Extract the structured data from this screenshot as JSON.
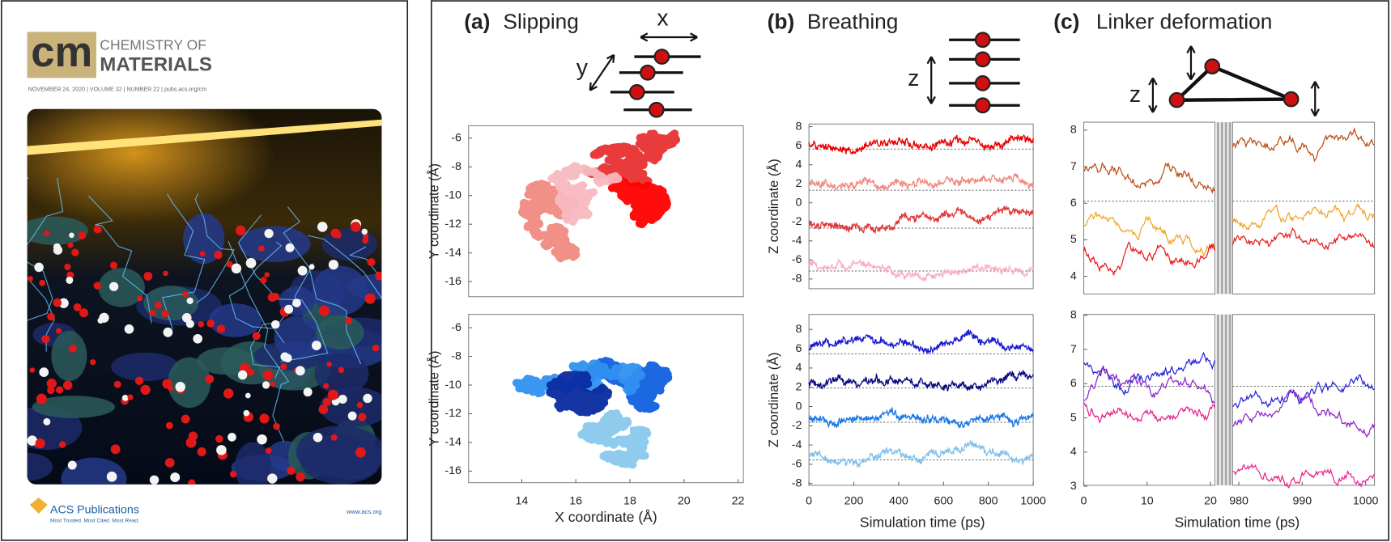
{
  "cover": {
    "logo": "cm",
    "journal_line1": "CHEMISTRY OF",
    "journal_line2": "MATERIALS",
    "issue": "NOVEMBER 24, 2020 | VOLUME 32 | NUMBER 22 | pubs.acs.org/cm",
    "publisher": "ACS Publications",
    "tagline": "Most Trusted. Most Cited. Most Read.",
    "url": "www.acs.org"
  },
  "panels": [
    {
      "label": "(a)",
      "title": "Slipping",
      "schematic_labels": [
        "x",
        "y"
      ],
      "ylabel": "Y coordinate (Å)",
      "xlabel": "X coordinate (Å)",
      "top_yticks": [
        -6,
        -8,
        -10,
        -12,
        -14,
        -16
      ],
      "bottom_yticks": [
        -6,
        -8,
        -10,
        -12,
        -14,
        -16
      ],
      "xticks": [
        14,
        16,
        18,
        20,
        22
      ]
    },
    {
      "label": "(b)",
      "title": "Breathing",
      "schematic_labels": [
        "z"
      ],
      "ylabel": "Z coordinate (Å)",
      "xlabel": "Simulation time (ps)",
      "top_yticks": [
        8,
        6,
        4,
        2,
        0,
        -2,
        -4,
        -6,
        -8
      ],
      "bottom_yticks": [
        8,
        6,
        4,
        2,
        0,
        -2,
        -4,
        -6,
        -8
      ],
      "xticks": [
        0,
        200,
        400,
        600,
        800,
        1000
      ]
    },
    {
      "label": "(c)",
      "title": "Linker deformation",
      "schematic_labels": [
        "z"
      ],
      "xlabel": "Simulation time (ps)",
      "top_yticks": [
        8,
        7,
        6,
        5,
        4
      ],
      "bottom_yticks": [
        8,
        7,
        6,
        5,
        4,
        3
      ],
      "xticks_left": [
        0,
        10,
        20
      ],
      "xticks_right": [
        980,
        990,
        1000
      ]
    }
  ]
}
